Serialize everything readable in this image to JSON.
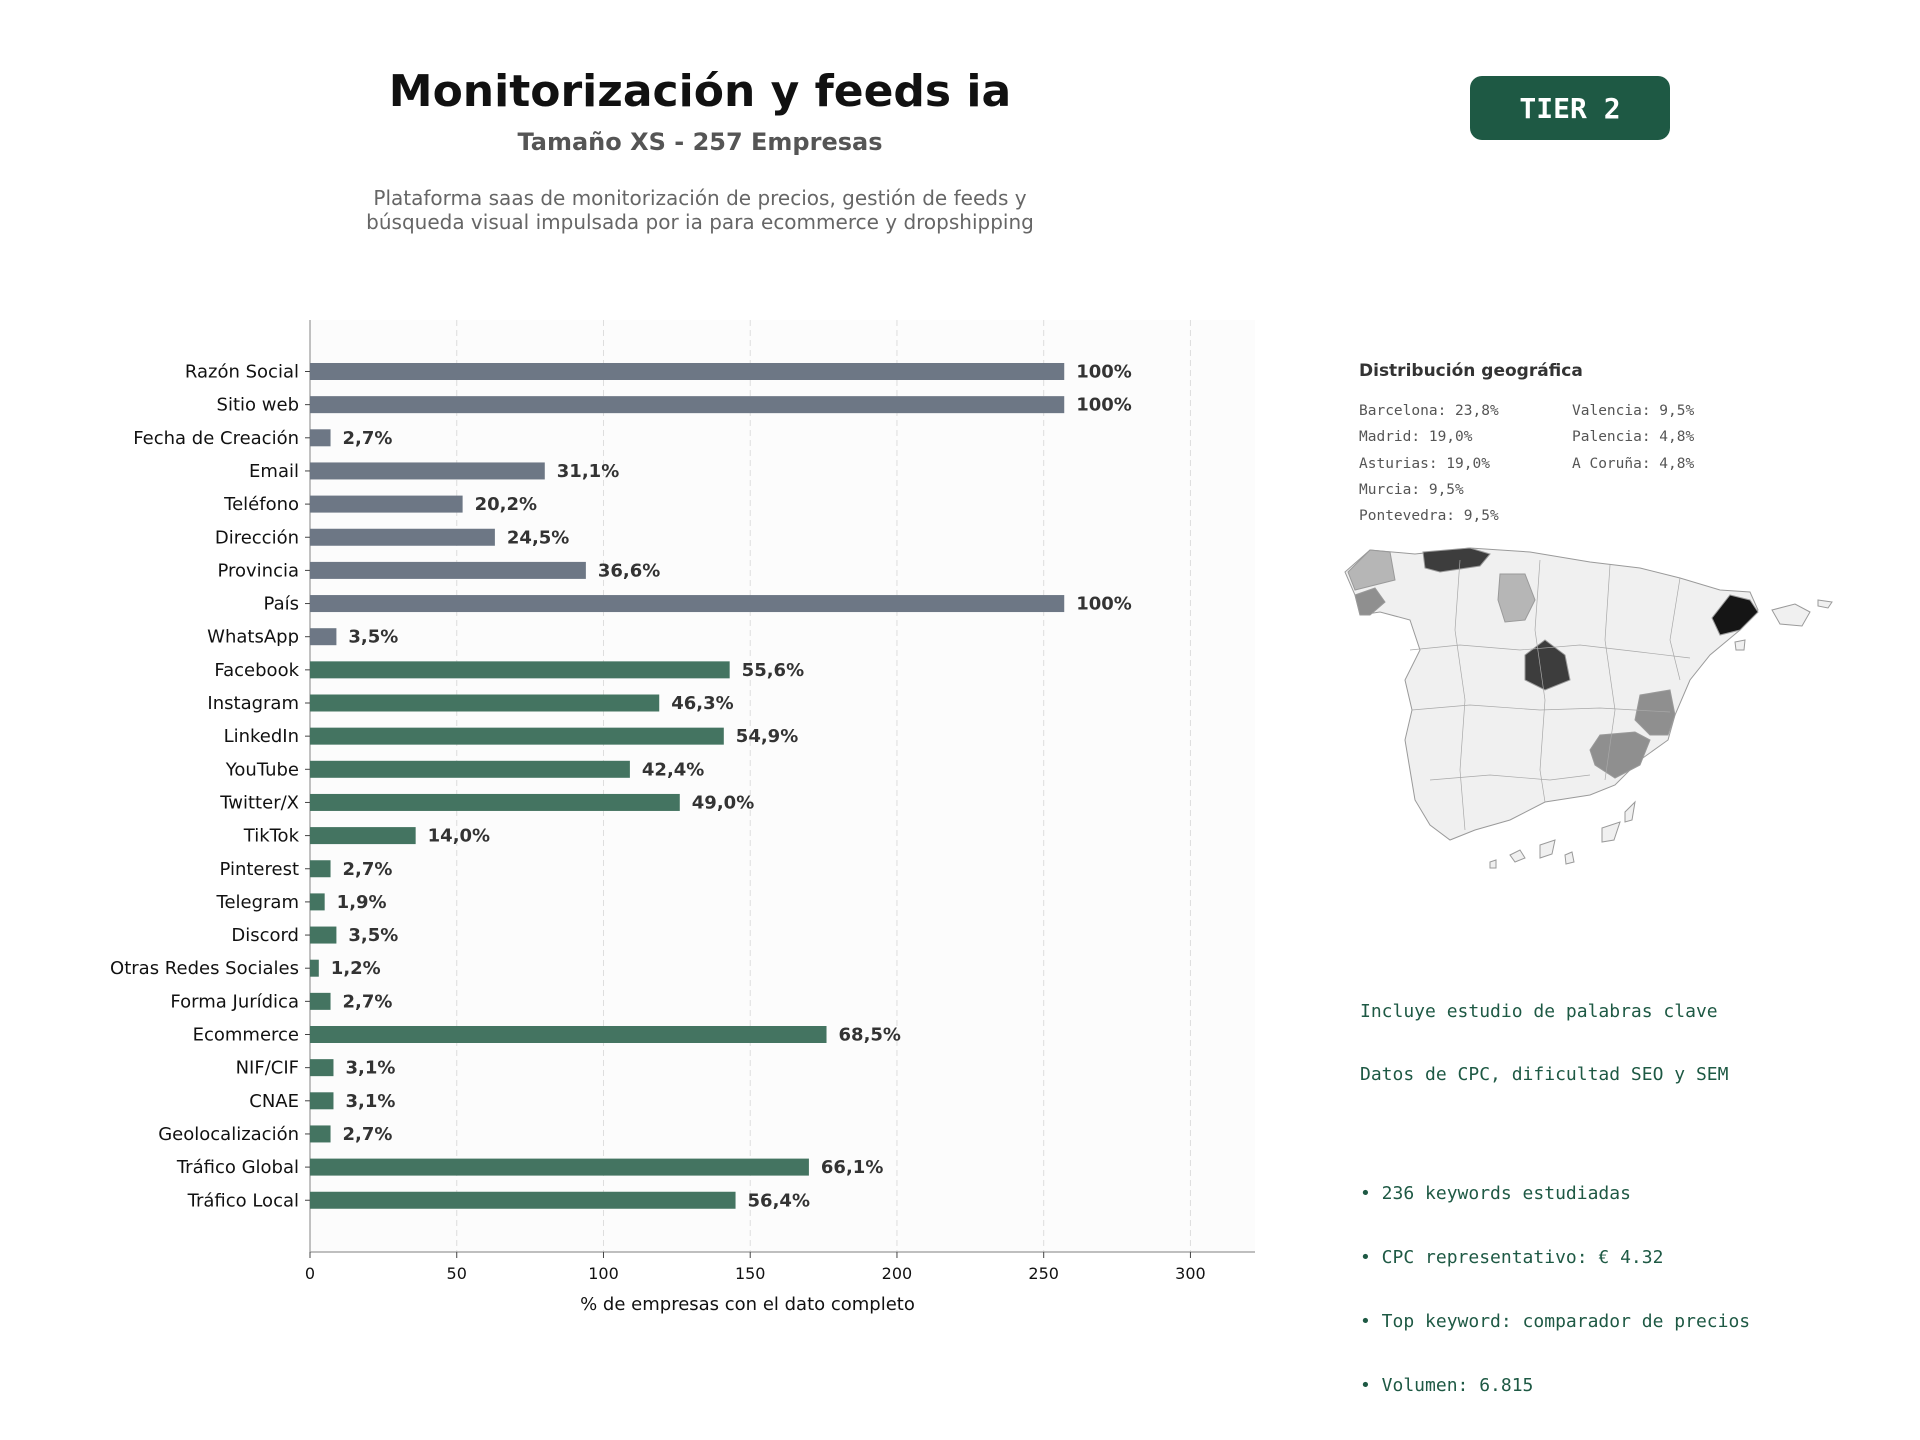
{
  "header": {
    "title": "Monitorización y feeds ia",
    "subtitle": "Tamaño XS - 257 Empresas",
    "description_line1": "Plataforma saas de monitorización de precios, gestión de feeds y",
    "description_line2": "búsqueda visual impulsada por ia para ecommerce y dropshipping",
    "tier_badge": "TIER 2"
  },
  "colors": {
    "gray_bar": "#6d7785",
    "green_bar": "#447461",
    "accent": "#1e5944"
  },
  "chart_data": {
    "type": "bar",
    "orientation": "horizontal",
    "xlabel": "% de empresas con el dato completo",
    "ylabel": "",
    "xlim": [
      0,
      322
    ],
    "xticks": [
      0,
      50,
      100,
      150,
      200,
      250,
      300
    ],
    "grid": "vertical dashed",
    "categories": [
      "Razón Social",
      "Sitio web",
      "Fecha de Creación",
      "Email",
      "Teléfono",
      "Dirección",
      "Provincia",
      "País",
      "WhatsApp",
      "Facebook",
      "Instagram",
      "LinkedIn",
      "YouTube",
      "Twitter/X",
      "TikTok",
      "Pinterest",
      "Telegram",
      "Discord",
      "Otras Redes Sociales",
      "Forma Jurídica",
      "Ecommerce",
      "NIF/CIF",
      "CNAE",
      "Geolocalización",
      "Tráfico Global",
      "Tráfico Local"
    ],
    "values": [
      257,
      257,
      7,
      80,
      52,
      63,
      94,
      257,
      9,
      143,
      119,
      141,
      109,
      126,
      36,
      7,
      5,
      9,
      3,
      7,
      176,
      8,
      8,
      7,
      170,
      145
    ],
    "labels": [
      "100%",
      "100%",
      "2,7%",
      "31,1%",
      "20,2%",
      "24,5%",
      "36,6%",
      "100%",
      "3,5%",
      "55,6%",
      "46,3%",
      "54,9%",
      "42,4%",
      "49,0%",
      "14,0%",
      "2,7%",
      "1,9%",
      "3,5%",
      "1,2%",
      "2,7%",
      "68,5%",
      "3,1%",
      "3,1%",
      "2,7%",
      "66,1%",
      "56,4%"
    ],
    "bar_colors": [
      "gray",
      "gray",
      "gray",
      "gray",
      "gray",
      "gray",
      "gray",
      "gray",
      "gray",
      "green",
      "green",
      "green",
      "green",
      "green",
      "green",
      "green",
      "green",
      "green",
      "green",
      "green",
      "green",
      "green",
      "green",
      "green",
      "green",
      "green"
    ]
  },
  "geo": {
    "title": "Distribución geográfica",
    "col1": [
      "Barcelona: 23,8%",
      "Madrid: 19,0%",
      "Asturias: 19,0%",
      "Murcia: 9,5%",
      "Pontevedra: 9,5%"
    ],
    "col2": [
      "Valencia: 9,5%",
      "Palencia: 4,8%",
      "A Coruña: 4,8%"
    ]
  },
  "keywords": {
    "line1": "Incluye estudio de palabras clave",
    "line2": "Datos de CPC, dificultad SEO y SEM",
    "bullet1": "• 236 keywords estudiadas",
    "bullet2": "• CPC representativo: € 4.32",
    "bullet3": "• Top keyword: comparador de precios",
    "bullet4": "• Volumen: 6.815"
  }
}
